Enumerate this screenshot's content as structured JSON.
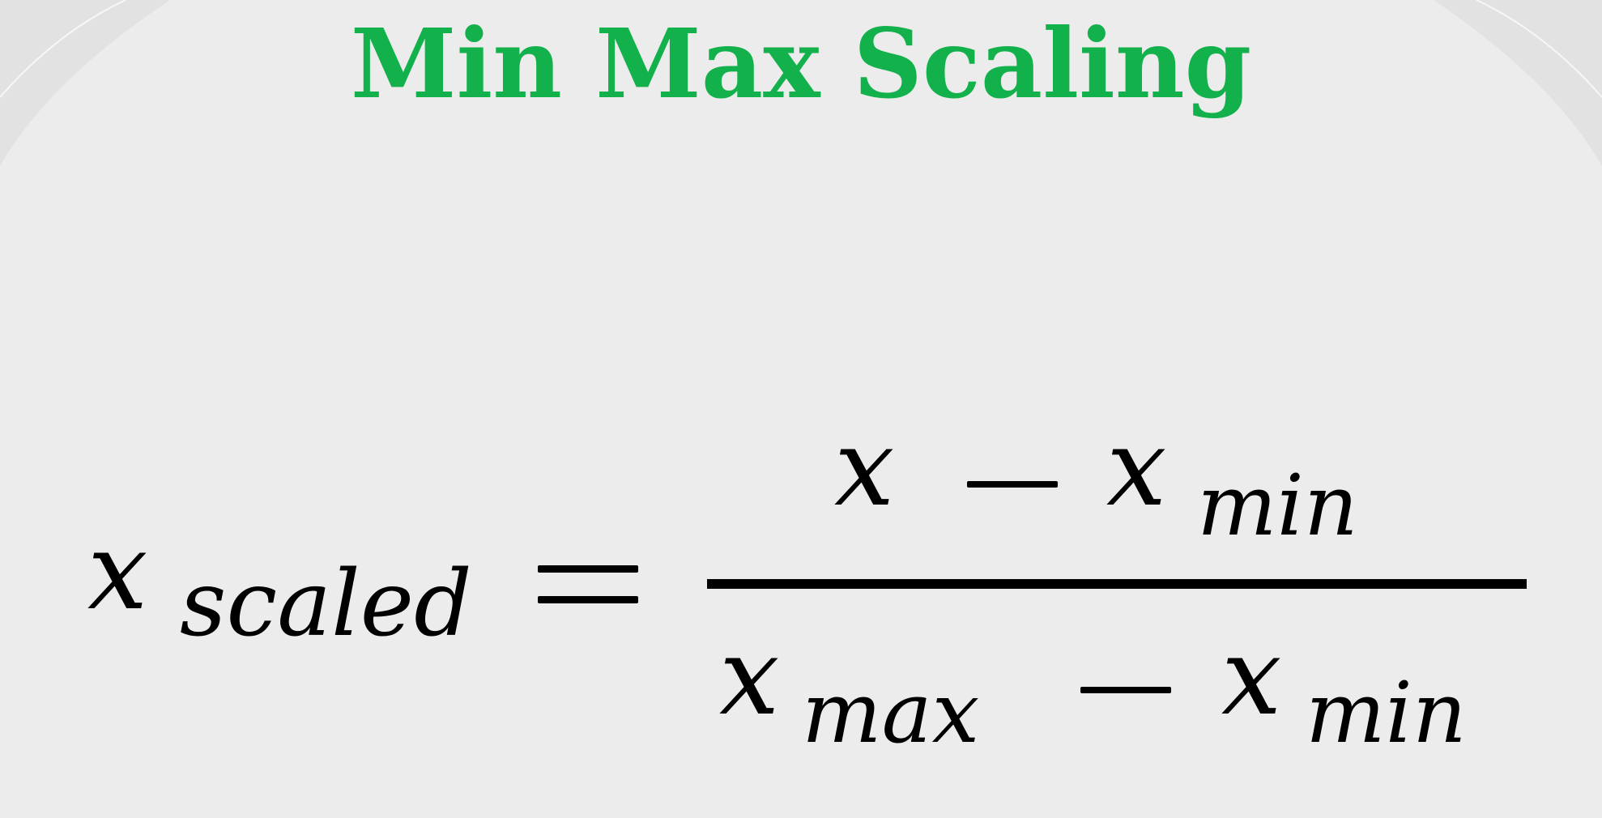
{
  "title": "Min Max Scaling",
  "colors": {
    "title": "#12b14b",
    "background": "#ececec",
    "ink": "#000000"
  },
  "formula": {
    "lhs": {
      "base": "x",
      "sub": "scaled"
    },
    "relation": "=",
    "numerator": {
      "term1": "x",
      "operator": "−",
      "term2_base": "x",
      "term2_sub": "min"
    },
    "denominator": {
      "term1_base": "x",
      "term1_sub": "max",
      "operator": "−",
      "term2_base": "x",
      "term2_sub": "min"
    }
  }
}
